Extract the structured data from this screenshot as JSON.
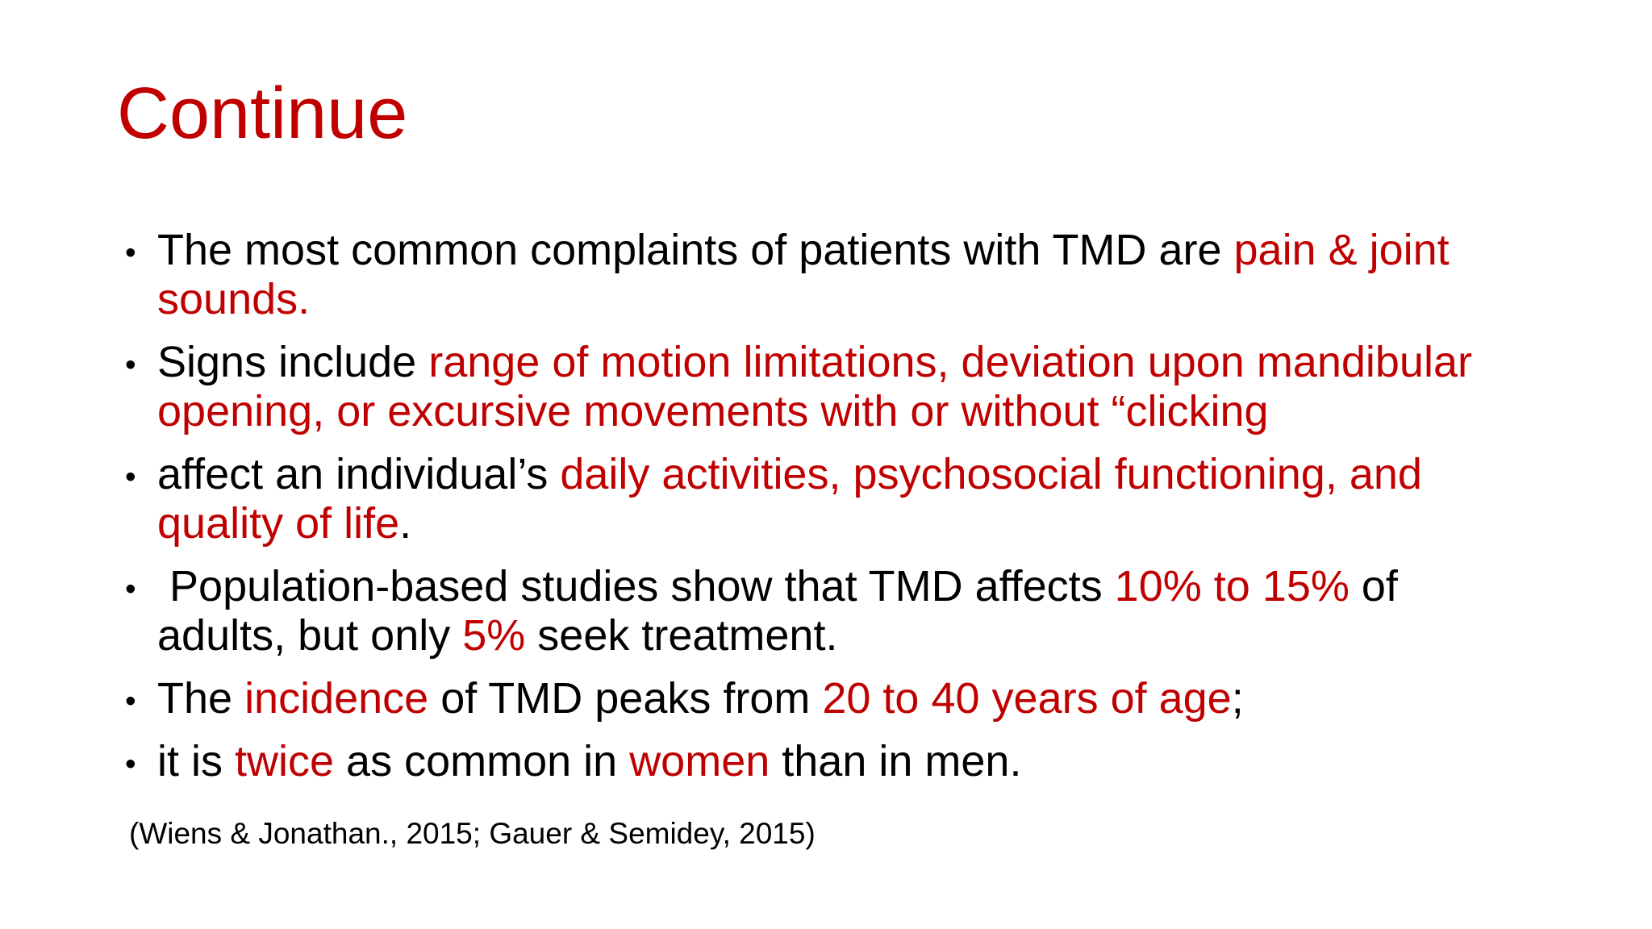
{
  "slide": {
    "title": "Continue",
    "citation": "(Wiens & Jonathan., 2015; Gauer & Semidey, 2015)",
    "colors": {
      "accent": "#C00000",
      "text": "#000000",
      "background": "#FFFFFF"
    },
    "bullet_marker": "•",
    "bullets": [
      {
        "runs": [
          {
            "text": "The most common complaints of patients with TMD are ",
            "color": "black"
          },
          {
            "text": "pain & joint",
            "color": "red",
            "break": true
          },
          {
            "text": "sounds.",
            "color": "red"
          }
        ]
      },
      {
        "runs": [
          {
            "text": "Signs include ",
            "color": "black"
          },
          {
            "text": "range of motion limitations, deviation upon mandibular",
            "color": "red",
            "break": true
          },
          {
            "text": "opening, or excursive movements with or without “clicking",
            "color": "red"
          }
        ]
      },
      {
        "runs": [
          {
            "text": "affect an individual’s ",
            "color": "black"
          },
          {
            "text": "daily activities, psychosocial functioning, and",
            "color": "red",
            "break": true
          },
          {
            "text": "quality of life",
            "color": "red"
          },
          {
            "text": ".",
            "color": "black"
          }
        ]
      },
      {
        "runs": [
          {
            "text": " Population-based studies show that TMD affects ",
            "color": "black"
          },
          {
            "text": "10% to 15%",
            "color": "red"
          },
          {
            "text": " of",
            "color": "black",
            "break": true
          },
          {
            "text": "adults, but only ",
            "color": "black"
          },
          {
            "text": "5%",
            "color": "red"
          },
          {
            "text": " seek treatment.",
            "color": "black"
          }
        ]
      },
      {
        "runs": [
          {
            "text": "The ",
            "color": "black"
          },
          {
            "text": "incidence",
            "color": "red"
          },
          {
            "text": " of TMD peaks from ",
            "color": "black"
          },
          {
            "text": "20 to 40 years of age",
            "color": "red"
          },
          {
            "text": ";",
            "color": "black"
          }
        ]
      },
      {
        "runs": [
          {
            "text": "it is ",
            "color": "black"
          },
          {
            "text": "twice",
            "color": "red"
          },
          {
            "text": " as common in ",
            "color": "black"
          },
          {
            "text": "women",
            "color": "red"
          },
          {
            "text": " than in men.",
            "color": "black"
          }
        ]
      }
    ]
  }
}
